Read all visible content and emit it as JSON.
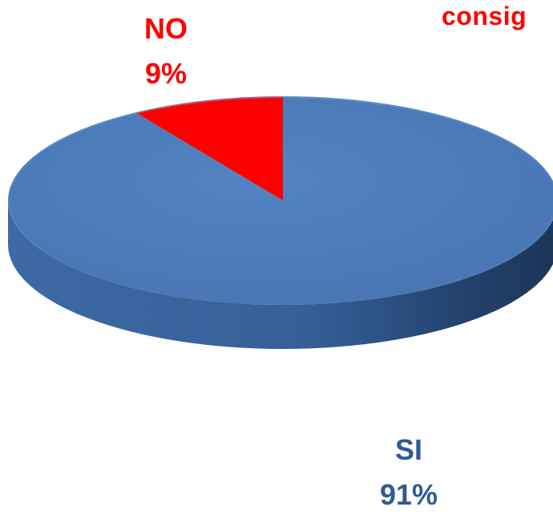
{
  "chart_data": {
    "type": "pie",
    "style": "3d",
    "title_partial": "consig",
    "slices": [
      {
        "label": "SI",
        "value": 91,
        "value_text": "91%",
        "color": "#4f81bd"
      },
      {
        "label": "NO",
        "value": 9,
        "value_text": "9%",
        "color": "#ff0000"
      }
    ],
    "legend": "none",
    "label_colors": {
      "SI": "#2f5b93",
      "NO": "#ff0000"
    }
  }
}
